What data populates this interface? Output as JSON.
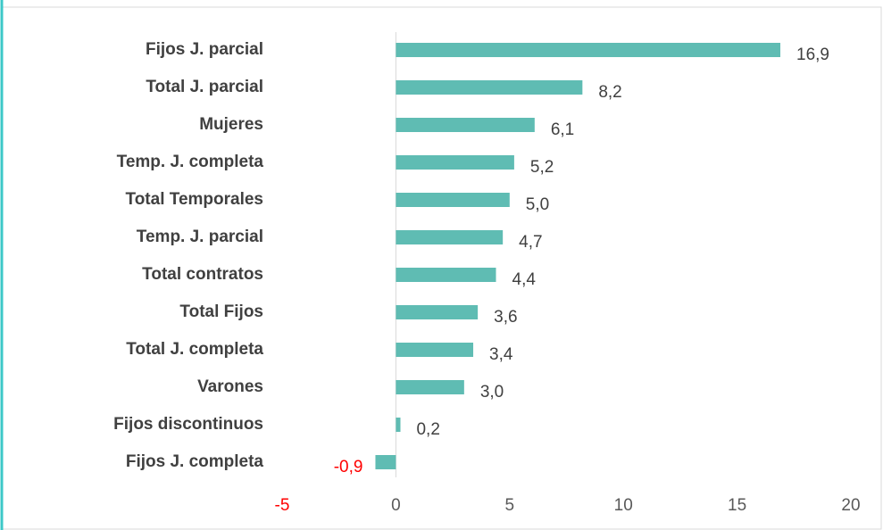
{
  "chart_data": {
    "type": "barh",
    "categories": [
      "Fijos J. parcial",
      "Total J. parcial",
      "Mujeres",
      "Temp. J. completa",
      "Total Temporales",
      "Temp. J. parcial",
      "Total contratos",
      "Total Fijos",
      "Total J. completa",
      "Varones",
      "Fijos discontinuos",
      "Fijos J. completa"
    ],
    "values": [
      16.9,
      8.2,
      6.1,
      5.2,
      5.0,
      4.7,
      4.4,
      3.6,
      3.4,
      3.0,
      0.2,
      -0.9
    ],
    "value_labels": [
      "16,9",
      "8,2",
      "6,1",
      "5,2",
      "5,0",
      "4,7",
      "4,4",
      "3,6",
      "3,4",
      "3,0",
      "0,2",
      "-0,9"
    ],
    "color": "#5fbcb3",
    "negative_color": "#ff0000",
    "xlim": [
      -5,
      20
    ],
    "xticks": [
      -5,
      0,
      5,
      10,
      15,
      20
    ]
  }
}
